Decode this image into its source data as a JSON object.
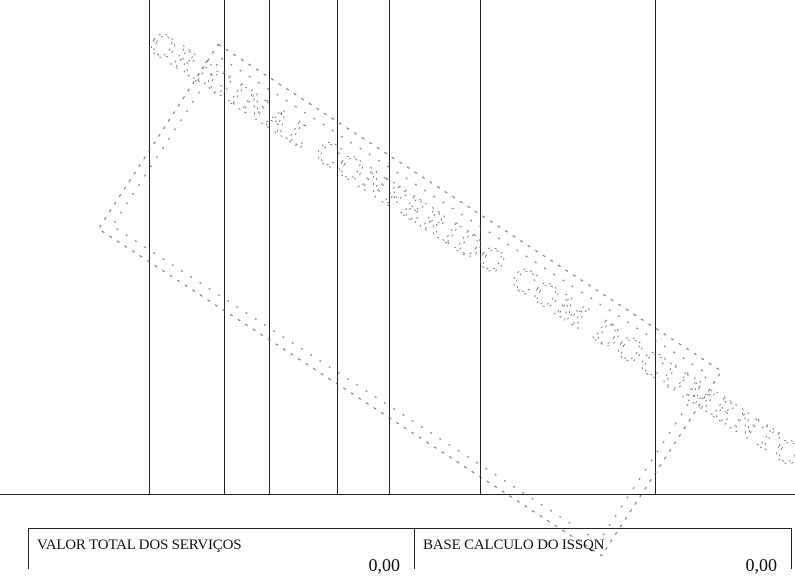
{
  "footer": {
    "valor_total_servicos": {
      "label": "VALOR TOTAL DOS SERVIÇOS",
      "value": "0,00"
    },
    "base_calculo_issqn": {
      "label": "BASE CALCULO DO ISSQN",
      "value": "0,00"
    }
  },
  "stamp": {
    "text": "ORIGINAL CONFERIDO COM DOCUMENTOS"
  }
}
